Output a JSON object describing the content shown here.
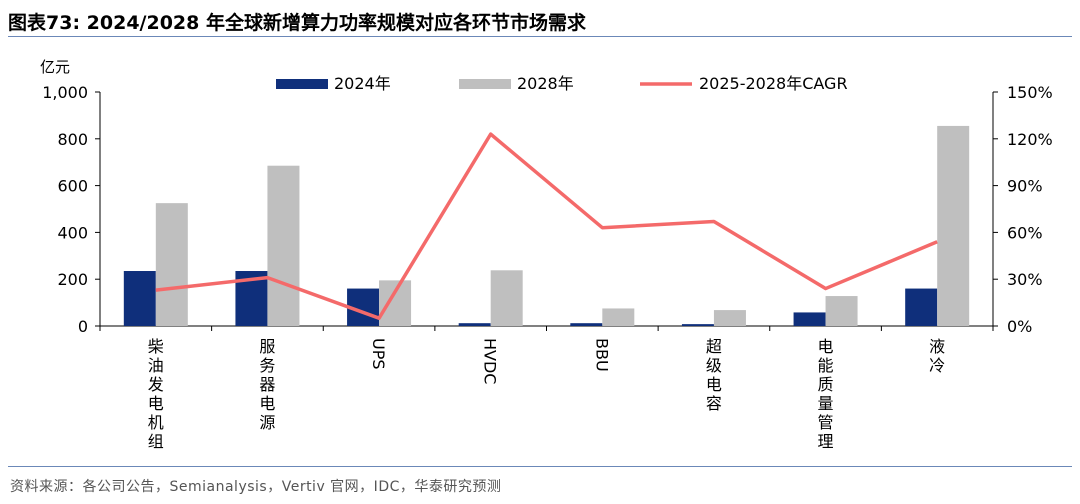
{
  "header": {
    "title": "图表73:  2024/2028 年全球新增算力功率规模对应各环节市场需求"
  },
  "footer": {
    "source": "资料来源：各公司公告，Semianalysis，Vertiv 官网，IDC，华泰研究预测"
  },
  "colors": {
    "bar_2024": "#0f2f7b",
    "bar_2028": "#bfbfbf",
    "cagr_line": "#f46a6a",
    "rule": "#6b88b8"
  },
  "chart_data": {
    "type": "bar",
    "categories": [
      "柴油发电机组",
      "服务器电源",
      "UPS",
      "HVDC",
      "BBU",
      "超级电容",
      "电能质量管理",
      "液冷"
    ],
    "series": [
      {
        "name": "2024年",
        "type": "bar",
        "axis": "left",
        "values": [
          235,
          235,
          160,
          12,
          12,
          8,
          58,
          160
        ]
      },
      {
        "name": "2028年",
        "type": "bar",
        "axis": "left",
        "values": [
          525,
          685,
          195,
          238,
          75,
          68,
          128,
          855
        ]
      },
      {
        "name": "2025-2028年CAGR",
        "type": "line",
        "axis": "right",
        "values": [
          0.23,
          0.31,
          0.05,
          1.23,
          0.63,
          0.67,
          0.24,
          0.54
        ]
      }
    ],
    "ylabel": "亿元",
    "ylim": [
      0,
      1000
    ],
    "yticks": [
      "0",
      "200",
      "400",
      "600",
      "800",
      "1,000"
    ],
    "y2lim": [
      0,
      1.5
    ],
    "y2ticks": [
      "0%",
      "30%",
      "60%",
      "90%",
      "120%",
      "150%"
    ],
    "grid": false,
    "legend_position": "top"
  }
}
